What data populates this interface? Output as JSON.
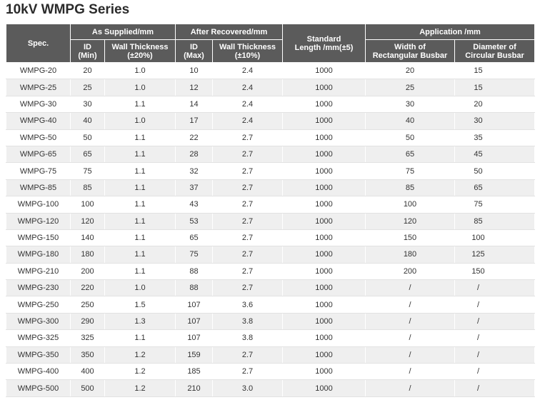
{
  "title": "10kV WMPG Series",
  "table": {
    "header": {
      "spec": "Spec.",
      "as_supplied": "As Supplied/mm",
      "after_recovered": "After Recovered/mm",
      "standard_length": [
        "Standard",
        "Length /mm(±5)"
      ],
      "application": "Application /mm",
      "sub": [
        [
          "ID",
          "(Min)"
        ],
        [
          "Wall Thickness",
          "(±20%)"
        ],
        [
          "ID",
          "(Max)"
        ],
        [
          "Wall Thickness",
          "(±10%)"
        ],
        [
          "Width of",
          "Rectangular Busbar"
        ],
        [
          "Diameter of",
          "Circular Busbar"
        ]
      ]
    },
    "rows": [
      [
        "WMPG-20",
        "20",
        "1.0",
        "10",
        "2.4",
        "1000",
        "20",
        "15"
      ],
      [
        "WMPG-25",
        "25",
        "1.0",
        "12",
        "2.4",
        "1000",
        "25",
        "15"
      ],
      [
        "WMPG-30",
        "30",
        "1.1",
        "14",
        "2.4",
        "1000",
        "30",
        "20"
      ],
      [
        "WMPG-40",
        "40",
        "1.0",
        "17",
        "2.4",
        "1000",
        "40",
        "30"
      ],
      [
        "WMPG-50",
        "50",
        "1.1",
        "22",
        "2.7",
        "1000",
        "50",
        "35"
      ],
      [
        "WMPG-65",
        "65",
        "1.1",
        "28",
        "2.7",
        "1000",
        "65",
        "45"
      ],
      [
        "WMPG-75",
        "75",
        "1.1",
        "32",
        "2.7",
        "1000",
        "75",
        "50"
      ],
      [
        "WMPG-85",
        "85",
        "1.1",
        "37",
        "2.7",
        "1000",
        "85",
        "65"
      ],
      [
        "WMPG-100",
        "100",
        "1.1",
        "43",
        "2.7",
        "1000",
        "100",
        "75"
      ],
      [
        "WMPG-120",
        "120",
        "1.1",
        "53",
        "2.7",
        "1000",
        "120",
        "85"
      ],
      [
        "WMPG-150",
        "140",
        "1.1",
        "65",
        "2.7",
        "1000",
        "150",
        "100"
      ],
      [
        "WMPG-180",
        "180",
        "1.1",
        "75",
        "2.7",
        "1000",
        "180",
        "125"
      ],
      [
        "WMPG-210",
        "200",
        "1.1",
        "88",
        "2.7",
        "1000",
        "200",
        "150"
      ],
      [
        "WMPG-230",
        "220",
        "1.0",
        "88",
        "2.7",
        "1000",
        "/",
        "/"
      ],
      [
        "WMPG-250",
        "250",
        "1.5",
        "107",
        "3.6",
        "1000",
        "/",
        "/"
      ],
      [
        "WMPG-300",
        "290",
        "1.3",
        "107",
        "3.8",
        "1000",
        "/",
        "/"
      ],
      [
        "WMPG-325",
        "325",
        "1.1",
        "107",
        "3.8",
        "1000",
        "/",
        "/"
      ],
      [
        "WMPG-350",
        "350",
        "1.2",
        "159",
        "2.7",
        "1000",
        "/",
        "/"
      ],
      [
        "WMPG-400",
        "400",
        "1.2",
        "185",
        "2.7",
        "1000",
        "/",
        "/"
      ],
      [
        "WMPG-500",
        "500",
        "1.2",
        "210",
        "3.0",
        "1000",
        "/",
        "/"
      ]
    ]
  }
}
